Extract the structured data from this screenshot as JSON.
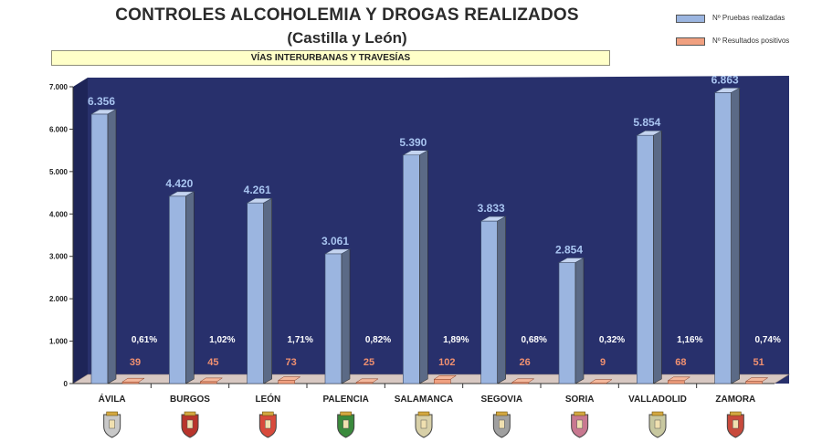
{
  "header": {
    "title": "CONTROLES ALCOHOLEMIA Y DROGAS REALIZADOS",
    "subtitle": "(Castilla y León)",
    "banner": "VÍAS INTERURBANAS  Y TRAVESÍAS"
  },
  "legend": [
    {
      "label": "Nº Pruebas realizadas",
      "color": "#9bb5e0"
    },
    {
      "label": "Nº Resultados positivos",
      "color": "#f0a080"
    }
  ],
  "chart_data": {
    "type": "bar",
    "title": "CONTROLES ALCOHOLEMIA Y DROGAS REALIZADOS",
    "subtitle": "(Castilla y León)",
    "categories": [
      "ÁVILA",
      "BURGOS",
      "LEÓN",
      "PALENCIA",
      "SALAMANCA",
      "SEGOVIA",
      "SORIA",
      "VALLADOLID",
      "ZAMORA"
    ],
    "series": [
      {
        "name": "Nº Pruebas realizadas",
        "values": [
          6356,
          4420,
          4261,
          3061,
          5390,
          3833,
          2854,
          5854,
          6863
        ],
        "labels": [
          "6.356",
          "4.420",
          "4.261",
          "3.061",
          "5.390",
          "3.833",
          "2.854",
          "5.854",
          "6.863"
        ]
      },
      {
        "name": "Nº Resultados positivos",
        "values": [
          39,
          45,
          73,
          25,
          102,
          26,
          9,
          68,
          51
        ],
        "labels": [
          "39",
          "45",
          "73",
          "25",
          "102",
          "26",
          "9",
          "68",
          "51"
        ]
      }
    ],
    "percentages": [
      "0,61%",
      "1,02%",
      "1,71%",
      "0,82%",
      "1,89%",
      "0,68%",
      "0,32%",
      "1,16%",
      "0,74%"
    ],
    "ylim": [
      0,
      7000
    ],
    "yticks": [
      0,
      1000,
      2000,
      3000,
      4000,
      5000,
      6000,
      7000
    ],
    "ytick_labels": [
      "0",
      "1.000",
      "2.000",
      "3.000",
      "4.000",
      "5.000",
      "6.000",
      "7.000"
    ],
    "xlabel": "",
    "ylabel": "",
    "legend_position": "top-right",
    "grid": false
  },
  "colors": {
    "background": "#28306c",
    "floor": "#d8c8c2",
    "bar_primary": "#9bb5e0",
    "bar_primary_side": "#5b6a86",
    "bar_secondary": "#f0a080",
    "value_label": "#a8c4f0",
    "positive_label": "#f09070",
    "percent_label": "#ffffff"
  }
}
